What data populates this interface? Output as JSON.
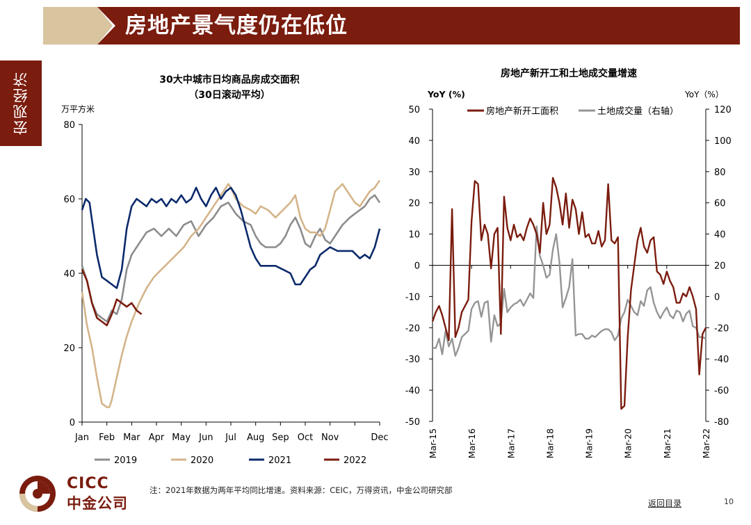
{
  "header": {
    "title": "房地产景气度仍在低位"
  },
  "side_tab": {
    "label": "宏观经济"
  },
  "footer": {
    "note": "注：2021年数据为两年平均同比增速。资料来源：CEIC，万得资讯，中金公司研究部",
    "back_link": "返回目录",
    "page_number": "10",
    "logo_en": "CICC",
    "logo_cn": "中金公司"
  },
  "colors": {
    "brand": "#7a1c0e",
    "brand_light": "#d9c4a0",
    "s2019": "#8c8c8c",
    "s2020": "#d4b48a",
    "s2021": "#0b2a6b",
    "s2022": "#7a1c0e",
    "gray": "#959595"
  },
  "chart_data": [
    {
      "type": "line",
      "title": "30大中城市日均商品房成交面积",
      "subtitle": "（30日滚动平均）",
      "ylabel": "万平方米",
      "ylim": [
        0,
        80
      ],
      "yticks": [
        0,
        20,
        40,
        60,
        80
      ],
      "xlim": [
        0,
        12
      ],
      "xtick_labels": [
        "Jan",
        "Feb",
        "Mar",
        "Apr",
        "May",
        "Jun",
        "Jul",
        "Aug",
        "Sep",
        "Oct",
        "Nov",
        "Dec"
      ],
      "legend_position": "bottom",
      "series": [
        {
          "name": "2019",
          "color_key": "s2019",
          "x": [
            0,
            0.2,
            0.4,
            0.6,
            0.8,
            1.0,
            1.2,
            1.4,
            1.6,
            1.8,
            2.0,
            2.3,
            2.6,
            2.9,
            3.2,
            3.5,
            3.8,
            4.1,
            4.4,
            4.7,
            5.0,
            5.3,
            5.6,
            5.9,
            6.2,
            6.5,
            6.8,
            7.0,
            7.2,
            7.4,
            7.6,
            7.8,
            8.0,
            8.2,
            8.4,
            8.6,
            8.8,
            9.0,
            9.2,
            9.4,
            9.6,
            9.8,
            10.0,
            10.2,
            10.5,
            10.8,
            11.0,
            11.2,
            11.4,
            11.6,
            11.8,
            12.0
          ],
          "y": [
            42,
            38,
            32,
            29,
            28,
            27,
            30,
            29,
            33,
            41,
            45,
            48,
            51,
            52,
            50,
            52,
            50,
            53,
            54,
            50,
            53,
            55,
            58,
            59,
            56,
            54,
            53,
            50,
            48,
            47,
            47,
            47,
            48,
            50,
            53,
            55,
            52,
            48,
            47,
            50,
            52,
            49,
            48,
            50,
            53,
            55,
            56,
            57,
            58,
            60,
            61,
            59
          ]
        },
        {
          "name": "2020",
          "color_key": "s2020",
          "x": [
            0,
            0.2,
            0.4,
            0.6,
            0.8,
            1.0,
            1.1,
            1.2,
            1.4,
            1.6,
            1.8,
            2.0,
            2.3,
            2.6,
            2.9,
            3.2,
            3.5,
            3.8,
            4.1,
            4.4,
            4.7,
            5.0,
            5.3,
            5.6,
            5.9,
            6.0,
            6.2,
            6.5,
            6.8,
            7.0,
            7.2,
            7.5,
            7.8,
            8.1,
            8.4,
            8.6,
            8.8,
            9.0,
            9.2,
            9.4,
            9.6,
            9.8,
            10.0,
            10.2,
            10.5,
            10.8,
            11.0,
            11.2,
            11.4,
            11.6,
            11.8,
            12.0
          ],
          "y": [
            35,
            26,
            20,
            12,
            5,
            4,
            4,
            6,
            12,
            18,
            23,
            27,
            32,
            36,
            39,
            41,
            43,
            45,
            47,
            50,
            52,
            55,
            58,
            61,
            64,
            63,
            60,
            58,
            57,
            56,
            58,
            57,
            55,
            57,
            59,
            61,
            55,
            52,
            51,
            51,
            50,
            52,
            57,
            62,
            64,
            61,
            59,
            58,
            60,
            62,
            63,
            65
          ]
        },
        {
          "name": "2021",
          "color_key": "s2021",
          "x": [
            0,
            0.15,
            0.3,
            0.45,
            0.6,
            0.8,
            1.0,
            1.2,
            1.4,
            1.6,
            1.8,
            2.0,
            2.2,
            2.4,
            2.6,
            2.8,
            3.0,
            3.2,
            3.4,
            3.6,
            3.8,
            4.0,
            4.2,
            4.4,
            4.6,
            4.8,
            5.0,
            5.2,
            5.4,
            5.6,
            5.8,
            6.0,
            6.2,
            6.4,
            6.6,
            6.8,
            7.0,
            7.2,
            7.5,
            7.8,
            8.1,
            8.4,
            8.6,
            8.8,
            9.0,
            9.2,
            9.4,
            9.6,
            9.8,
            10.0,
            10.3,
            10.6,
            10.9,
            11.2,
            11.4,
            11.6,
            11.8,
            12.0
          ],
          "y": [
            57,
            60,
            59,
            52,
            45,
            39,
            38,
            37,
            36,
            41,
            52,
            58,
            60,
            59,
            58,
            60,
            59,
            60,
            58,
            60,
            59,
            61,
            59,
            60,
            63,
            60,
            58,
            61,
            63,
            60,
            62,
            63,
            61,
            57,
            52,
            47,
            44,
            42,
            42,
            42,
            41,
            40,
            37,
            37,
            39,
            41,
            42,
            45,
            46,
            47,
            46,
            46,
            46,
            44,
            45,
            44,
            47,
            52
          ]
        },
        {
          "name": "2022",
          "color_key": "s2022",
          "x": [
            0,
            0.2,
            0.4,
            0.6,
            0.8,
            1.0,
            1.2,
            1.4,
            1.6,
            1.8,
            2.0,
            2.2,
            2.4
          ],
          "y": [
            41,
            38,
            32,
            28,
            27,
            26,
            29,
            33,
            32,
            31,
            32,
            30,
            29
          ]
        }
      ]
    },
    {
      "type": "line",
      "title": "房地产新开工和土地成交量增速",
      "ylabel": "YoY (%)",
      "ylabel_right": "YoY（%）",
      "ylim": [
        -50,
        50
      ],
      "yticks": [
        -50,
        -40,
        -30,
        -20,
        -10,
        0,
        10,
        20,
        30,
        40,
        50
      ],
      "ylim_right": [
        -80,
        120
      ],
      "yticks_right": [
        -80,
        -60,
        -40,
        -20,
        0,
        20,
        40,
        60,
        80,
        100,
        120
      ],
      "xlim": [
        0,
        84
      ],
      "xtick_values": [
        0,
        12,
        24,
        36,
        48,
        60,
        72,
        84
      ],
      "xtick_labels": [
        "Mar-15",
        "Mar-16",
        "Mar-17",
        "Mar-18",
        "Mar-19",
        "Mar-20",
        "Mar-21",
        "Mar-22"
      ],
      "legend_position": "top",
      "series": [
        {
          "name": "房地产新开工面积",
          "color_key": "s2022",
          "axis": "left",
          "x": [
            0,
            1,
            2,
            3,
            4,
            5,
            6,
            7,
            8,
            9,
            10,
            11,
            12,
            13,
            14,
            15,
            16,
            17,
            18,
            19,
            20,
            21,
            22,
            23,
            24,
            25,
            26,
            27,
            28,
            29,
            30,
            31,
            32,
            33,
            34,
            35,
            36,
            37,
            38,
            39,
            40,
            41,
            42,
            43,
            44,
            45,
            46,
            47,
            48,
            49,
            50,
            51,
            52,
            53,
            54,
            55,
            56,
            57,
            58,
            59,
            60,
            61,
            62,
            63,
            64,
            65,
            66,
            67,
            68,
            69,
            70,
            71,
            72,
            73,
            74,
            75,
            76,
            77,
            78,
            79,
            80,
            81,
            82,
            83,
            84
          ],
          "y": [
            -18,
            -15,
            -13,
            -16,
            -20,
            -24,
            18,
            -23,
            -20,
            -15,
            -13,
            -11,
            14,
            27,
            26,
            8,
            13,
            10,
            -1,
            10,
            12,
            -22,
            22,
            12,
            8,
            13,
            9,
            10,
            8,
            12,
            15,
            13,
            10,
            4,
            20,
            10,
            13,
            28,
            25,
            20,
            13,
            23,
            12,
            21,
            18,
            10,
            17,
            9,
            10,
            7,
            7,
            11,
            6,
            8,
            26,
            8,
            7,
            9,
            -46,
            -45,
            -23,
            -8,
            0,
            8,
            12,
            6,
            4,
            8,
            9,
            -2,
            -3,
            -6,
            -2,
            -5,
            -7,
            -12,
            -12,
            -9,
            -10,
            -7,
            -10,
            -14,
            -35,
            -22,
            -20
          ]
        },
        {
          "name": "土地成交量（右轴）",
          "color_key": "gray",
          "axis": "right",
          "x": [
            0,
            1,
            2,
            3,
            4,
            5,
            6,
            7,
            8,
            9,
            10,
            11,
            12,
            13,
            14,
            15,
            16,
            17,
            18,
            19,
            20,
            21,
            22,
            23,
            24,
            25,
            26,
            27,
            28,
            29,
            30,
            31,
            32,
            33,
            34,
            35,
            36,
            37,
            38,
            39,
            40,
            41,
            42,
            43,
            44,
            45,
            46,
            47,
            48,
            49,
            50,
            51,
            52,
            53,
            54,
            55,
            56,
            57,
            58,
            59,
            60,
            61,
            62,
            63,
            64,
            65,
            66,
            67,
            68,
            69,
            70,
            71,
            72,
            73,
            74,
            75,
            76,
            77,
            78,
            79,
            80,
            81,
            82,
            83,
            84
          ],
          "y": [
            -33,
            -33,
            -27,
            -37,
            -22,
            -32,
            -27,
            -38,
            -33,
            -26,
            -24,
            -22,
            -8,
            -4,
            -3,
            -13,
            -4,
            -3,
            -29,
            -12,
            -19,
            -17,
            5,
            -10,
            -7,
            -5,
            -4,
            -2,
            -6,
            -2,
            2,
            -1,
            45,
            26,
            20,
            12,
            14,
            30,
            40,
            22,
            -7,
            -1,
            6,
            24,
            -25,
            -24,
            -24,
            -27,
            -27,
            -25,
            -26,
            -24,
            -22,
            -21,
            -21,
            -23,
            -28,
            -25,
            -14,
            -10,
            -2,
            -6,
            -10,
            -12,
            -3,
            -6,
            4,
            6,
            -4,
            -10,
            -14,
            -10,
            -7,
            -12,
            -14,
            -9,
            -10,
            -16,
            -11,
            -9,
            -19,
            -20,
            -26,
            -26,
            -27
          ]
        }
      ]
    }
  ]
}
